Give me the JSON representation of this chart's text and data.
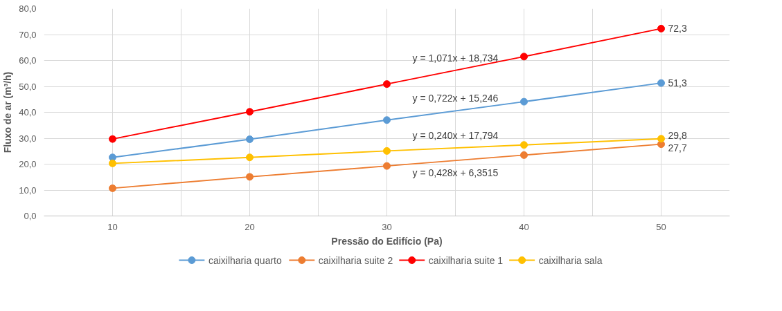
{
  "chart_data": {
    "type": "line",
    "xlabel": "Pressão do Edifício (Pa)",
    "ylabel": "Fluxo de ar (m³/h)",
    "x": [
      10,
      20,
      30,
      40,
      50
    ],
    "series": [
      {
        "name": "caixilharia quarto",
        "color": "#5b9bd5",
        "values": [
          22.6,
          29.6,
          37.0,
          44.1,
          51.3
        ],
        "value_labels": [
          null,
          null,
          null,
          null,
          "51,3"
        ]
      },
      {
        "name": "caixilharia suite 2",
        "color": "#ed7d31",
        "values": [
          10.7,
          15.1,
          19.3,
          23.5,
          27.7
        ],
        "value_labels": [
          null,
          null,
          null,
          null,
          "27,7"
        ]
      },
      {
        "name": "caixilharia suite 1",
        "color": "#ff0000",
        "values": [
          29.7,
          40.2,
          50.9,
          61.5,
          72.3
        ],
        "value_labels": [
          null,
          null,
          null,
          null,
          "72,3"
        ]
      },
      {
        "name": "caixilharia sala",
        "color": "#ffc000",
        "values": [
          20.3,
          22.6,
          25.1,
          27.4,
          29.8
        ],
        "value_labels": [
          null,
          null,
          null,
          null,
          "29,8"
        ]
      }
    ],
    "xlim": [
      5,
      55
    ],
    "xticks": [
      10,
      {
        "value": 15,
        "label": null
      },
      20,
      {
        "value": 25,
        "label": null
      },
      30,
      {
        "value": 35,
        "label": null
      },
      40,
      {
        "value": 45,
        "label": null
      },
      50
    ],
    "ylim": [
      0,
      80
    ],
    "yticks": [
      {
        "value": 0,
        "label": "0,0"
      },
      {
        "value": 10,
        "label": "10,0"
      },
      {
        "value": 20,
        "label": "20,0"
      },
      {
        "value": 30,
        "label": "30,0"
      },
      {
        "value": 40,
        "label": "40,0"
      },
      {
        "value": 50,
        "label": "50,0"
      },
      {
        "value": 60,
        "label": "60,0"
      },
      {
        "value": 70,
        "label": "70,0"
      },
      {
        "value": 80,
        "label": "80,0"
      }
    ],
    "annotations": [
      "y = 0,722x + 15,246",
      "y = 0,428x + 6,3515",
      "y = 1,071x + 18,734",
      "y = 0,240x + 17,794"
    ],
    "grid": true,
    "legend": "bottom",
    "marker": "circle",
    "line_style": "solid"
  }
}
